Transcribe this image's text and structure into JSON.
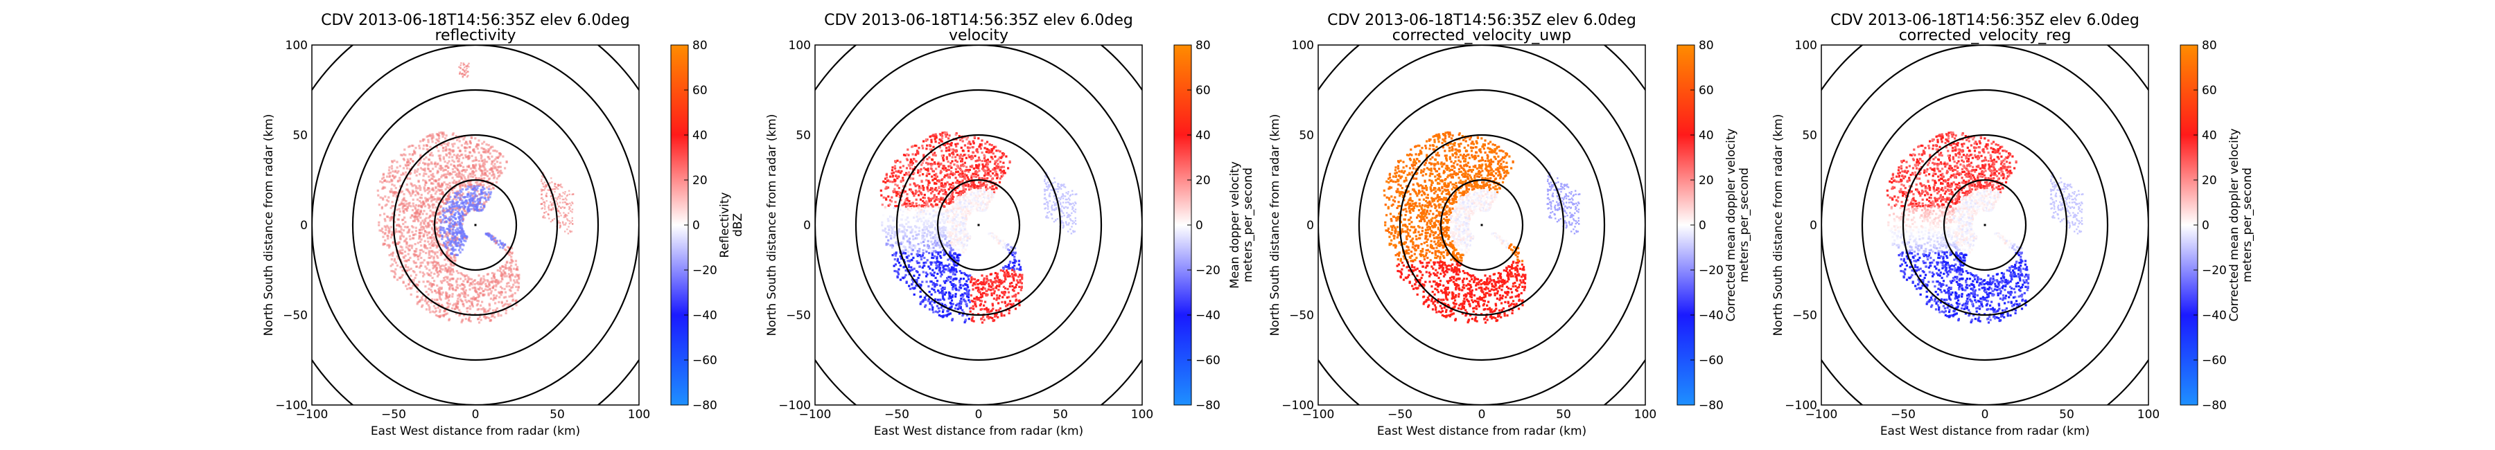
{
  "figure": {
    "shared": {
      "title_line1": "CDV 2013-06-18T14:56:35Z elev 6.0deg",
      "xlabel": "East West distance from radar (km)",
      "ylabel": "North South distance from radar (km)",
      "axis_ticks": [
        "−100",
        "−50",
        "0",
        "50",
        "100"
      ],
      "colorbar_ticks": [
        "80",
        "60",
        "40",
        "20",
        "0",
        "−20",
        "−40",
        "−60",
        "−80"
      ]
    },
    "panels": [
      {
        "title_line2": "reflectivity",
        "colorbar_label_1": "Reflectivity",
        "colorbar_label_2": "dBZ"
      },
      {
        "title_line2": "velocity",
        "colorbar_label_1": "Mean dopper velocity",
        "colorbar_label_2": "meters_per_second"
      },
      {
        "title_line2": "corrected_velocity_uwp",
        "colorbar_label_1": "Corrected mean doppler velocity",
        "colorbar_label_2": "meters_per_second"
      },
      {
        "title_line2": "corrected_velocity_reg",
        "colorbar_label_1": "Corrected mean doppler velocity",
        "colorbar_label_2": "meters_per_second"
      }
    ]
  },
  "chart_data": [
    {
      "type": "heatmap",
      "title": "CDV 2013-06-18T14:56:35Z elev 6.0deg reflectivity",
      "field": "reflectivity",
      "xlabel": "East West distance from radar (km)",
      "ylabel": "North South distance from radar (km)",
      "xlim": [
        -100,
        100
      ],
      "ylim": [
        -100,
        100
      ],
      "xticks": [
        -100,
        -50,
        0,
        50,
        100
      ],
      "yticks": [
        -100,
        -50,
        0,
        50,
        100
      ],
      "range_rings_km": [
        25,
        50,
        75,
        100,
        125
      ],
      "colorbar": {
        "label": "Reflectivity dBZ",
        "vmin": -80,
        "vmax": 80,
        "ticks": [
          -80,
          -60,
          -40,
          -20,
          0,
          20,
          40,
          60,
          80
        ]
      },
      "colormap": {
        "low": "#1e90ff",
        "mid": "#ffffff",
        "high": "#ff8c00"
      },
      "echo": {
        "description": "weak echo arc west of radar, value range approx",
        "typical_values": [
          10,
          25
        ],
        "near_radar_values": [
          -10,
          0
        ]
      }
    },
    {
      "type": "heatmap",
      "title": "CDV 2013-06-18T14:56:35Z elev 6.0deg velocity",
      "field": "velocity",
      "xlabel": "East West distance from radar (km)",
      "ylabel": "North South distance from radar (km)",
      "xlim": [
        -100,
        100
      ],
      "ylim": [
        -100,
        100
      ],
      "xticks": [
        -100,
        -50,
        0,
        50,
        100
      ],
      "yticks": [
        -100,
        -50,
        0,
        50,
        100
      ],
      "range_rings_km": [
        25,
        50,
        75,
        100,
        125
      ],
      "colorbar": {
        "label": "Mean dopper velocity meters_per_second",
        "vmin": -80,
        "vmax": 80,
        "ticks": [
          -80,
          -60,
          -40,
          -20,
          0,
          20,
          40,
          60,
          80
        ]
      },
      "colormap": {
        "low": "#1e90ff",
        "mid": "#ffffff",
        "high": "#ff8c00"
      },
      "echo": {
        "north_side_values": [
          20,
          40
        ],
        "south_side_values": [
          -40,
          -25
        ],
        "folded_southeast_values": [
          30,
          40
        ]
      }
    },
    {
      "type": "heatmap",
      "title": "CDV 2013-06-18T14:56:35Z elev 6.0deg corrected_velocity_uwp",
      "field": "corrected_velocity_uwp",
      "xlabel": "East West distance from radar (km)",
      "ylabel": "North South distance from radar (km)",
      "xlim": [
        -100,
        100
      ],
      "ylim": [
        -100,
        100
      ],
      "xticks": [
        -100,
        -50,
        0,
        50,
        100
      ],
      "yticks": [
        -100,
        -50,
        0,
        50,
        100
      ],
      "range_rings_km": [
        25,
        50,
        75,
        100,
        125
      ],
      "colorbar": {
        "label": "Corrected mean doppler velocity meters_per_second",
        "vmin": -80,
        "vmax": 80,
        "ticks": [
          -80,
          -60,
          -40,
          -20,
          0,
          20,
          40,
          60,
          80
        ]
      },
      "colormap": {
        "low": "#1e90ff",
        "mid": "#ffffff",
        "high": "#ff8c00"
      },
      "echo": {
        "north_side_values": [
          70,
          75
        ],
        "south_side_values": [
          35,
          45
        ]
      }
    },
    {
      "type": "heatmap",
      "title": "CDV 2013-06-18T14:56:35Z elev 6.0deg corrected_velocity_reg",
      "field": "corrected_velocity_reg",
      "xlabel": "East West distance from radar (km)",
      "ylabel": "North South distance from radar (km)",
      "xlim": [
        -100,
        100
      ],
      "ylim": [
        -100,
        100
      ],
      "xticks": [
        -100,
        -50,
        0,
        50,
        100
      ],
      "yticks": [
        -100,
        -50,
        0,
        50,
        100
      ],
      "range_rings_km": [
        25,
        50,
        75,
        100,
        125
      ],
      "colorbar": {
        "label": "Corrected mean doppler velocity meters_per_second",
        "vmin": -80,
        "vmax": 80,
        "ticks": [
          -80,
          -60,
          -40,
          -20,
          0,
          20,
          40,
          60,
          80
        ]
      },
      "colormap": {
        "low": "#1e90ff",
        "mid": "#ffffff",
        "high": "#ff8c00"
      },
      "echo": {
        "north_side_values": [
          25,
          40
        ],
        "south_side_values": [
          -40,
          -25
        ]
      }
    }
  ]
}
